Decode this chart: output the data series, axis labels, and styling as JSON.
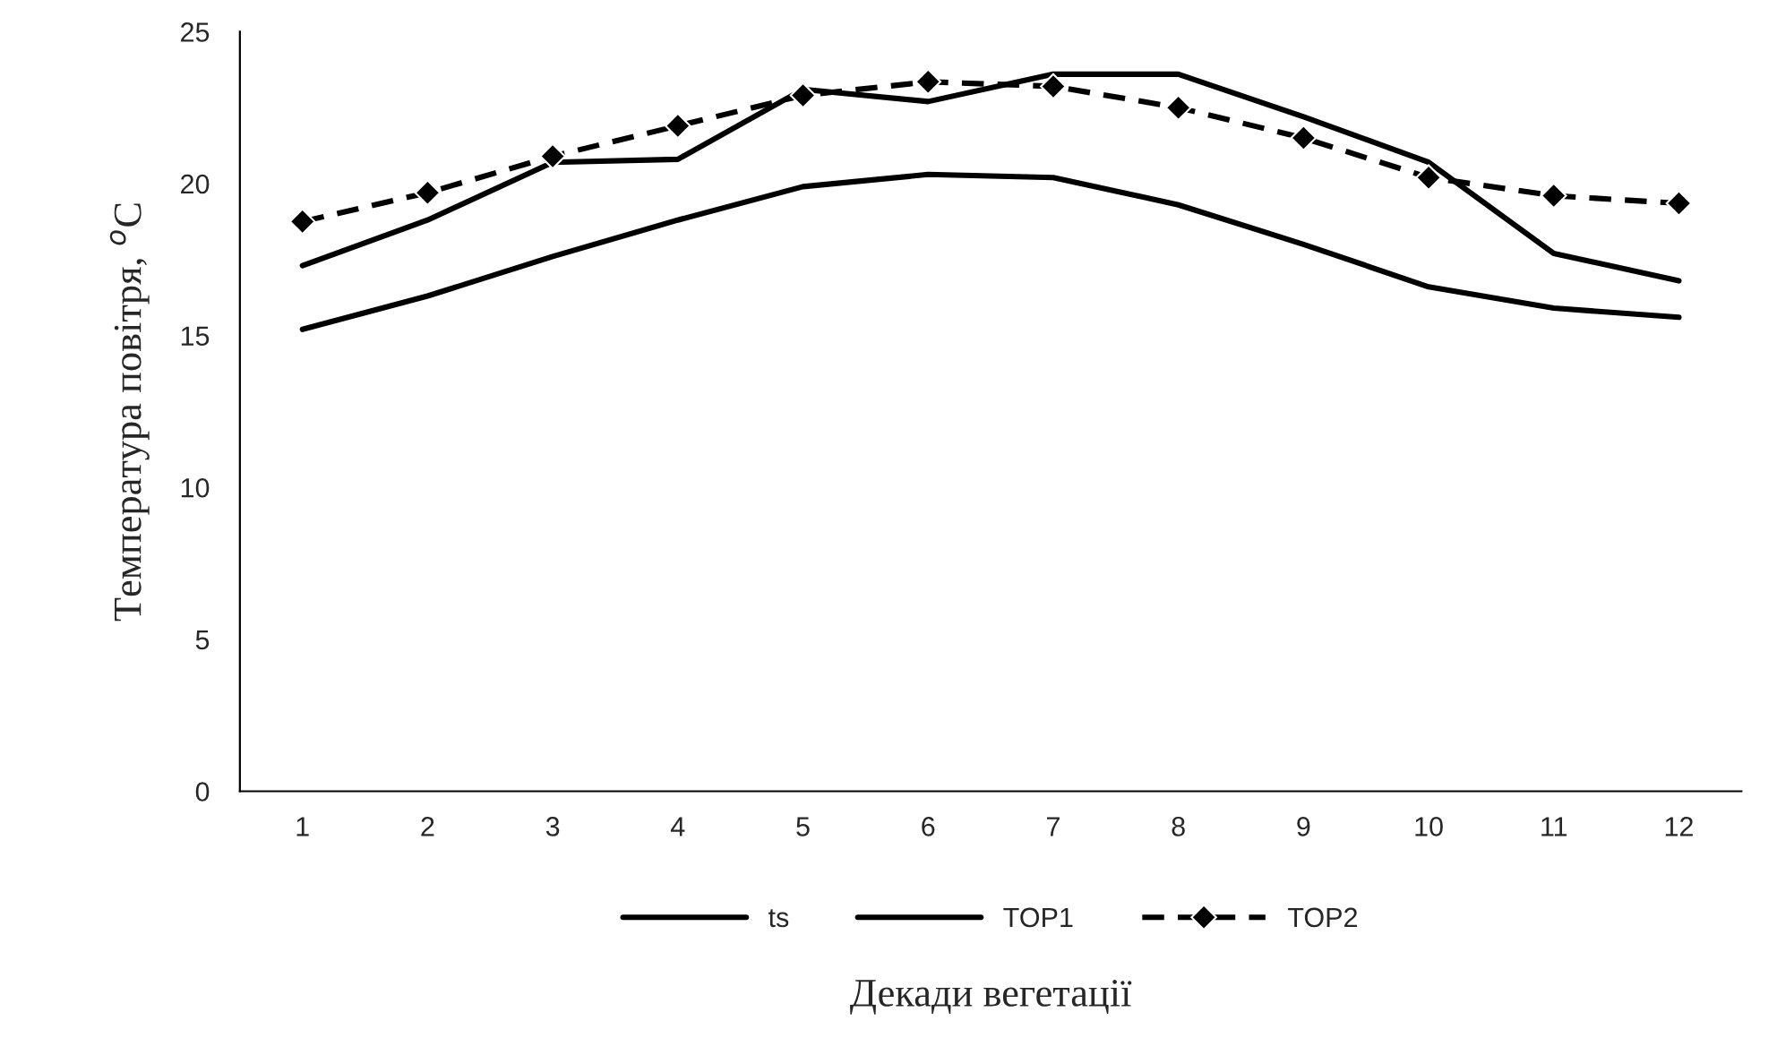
{
  "chart_data": {
    "type": "line",
    "xlabel": "Декади вегетації",
    "ylabel": "Температура повітря, $^{o}$C",
    "categories": [
      "1",
      "2",
      "3",
      "4",
      "5",
      "6",
      "7",
      "8",
      "9",
      "10",
      "11",
      "12"
    ],
    "series": [
      {
        "name": "ts",
        "color": "#000000",
        "line_style": "solid",
        "marker": "none",
        "values": [
          15.2,
          16.3,
          17.6,
          18.8,
          19.9,
          20.3,
          20.2,
          19.3,
          18.0,
          16.6,
          15.9,
          15.6
        ]
      },
      {
        "name": "TOP1",
        "color": "#000000",
        "line_style": "solid",
        "marker": "none",
        "values": [
          17.3,
          18.8,
          20.7,
          20.8,
          23.1,
          22.7,
          23.6,
          23.6,
          22.2,
          20.7,
          17.7,
          16.8
        ]
      },
      {
        "name": "TOP2",
        "color": "#000000",
        "line_style": "dashed",
        "marker": "diamond",
        "values": [
          18.75,
          19.7,
          20.9,
          21.9,
          22.9,
          23.35,
          23.2,
          22.5,
          21.5,
          20.2,
          19.6,
          19.35
        ]
      }
    ],
    "ylim": [
      0,
      25
    ],
    "yticks": [
      0,
      5,
      10,
      15,
      20,
      25
    ],
    "grid": false,
    "legend": "bottom"
  }
}
